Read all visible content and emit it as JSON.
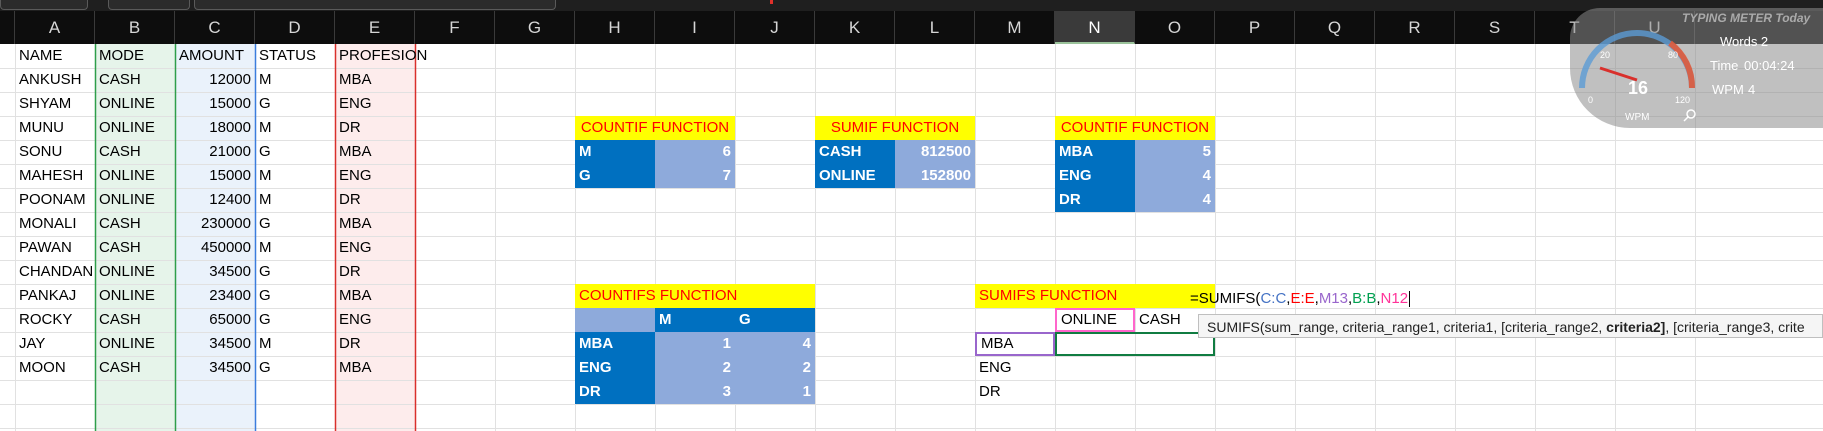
{
  "columns": [
    "A",
    "B",
    "C",
    "D",
    "E",
    "F",
    "G",
    "H",
    "I",
    "J",
    "K",
    "L",
    "M",
    "N",
    "O",
    "P",
    "Q",
    "R",
    "S",
    "T",
    "U"
  ],
  "selected_column": "N",
  "headers": {
    "name": "NAME",
    "mode": "MODE",
    "amount": "AMOUNT",
    "status": "STATUS",
    "profesion": "PROFESION"
  },
  "rows": [
    {
      "name": "ANKUSH",
      "mode": "CASH",
      "amount": "12000",
      "status": "M",
      "profesion": "MBA"
    },
    {
      "name": "SHYAM",
      "mode": "ONLINE",
      "amount": "15000",
      "status": "G",
      "profesion": "ENG"
    },
    {
      "name": "MUNU",
      "mode": "ONLINE",
      "amount": "18000",
      "status": "M",
      "profesion": "DR"
    },
    {
      "name": "SONU",
      "mode": "CASH",
      "amount": "21000",
      "status": "G",
      "profesion": "MBA"
    },
    {
      "name": "MAHESH",
      "mode": "ONLINE",
      "amount": "15000",
      "status": "M",
      "profesion": "ENG"
    },
    {
      "name": "POONAM",
      "mode": "ONLINE",
      "amount": "12400",
      "status": "M",
      "profesion": "DR"
    },
    {
      "name": "MONALI",
      "mode": "CASH",
      "amount": "230000",
      "status": "G",
      "profesion": "MBA"
    },
    {
      "name": "PAWAN",
      "mode": "CASH",
      "amount": "450000",
      "status": "M",
      "profesion": "ENG"
    },
    {
      "name": "CHANDAN",
      "mode": "ONLINE",
      "amount": "34500",
      "status": "G",
      "profesion": "DR"
    },
    {
      "name": "PANKAJ",
      "mode": "ONLINE",
      "amount": "23400",
      "status": "G",
      "profesion": "MBA"
    },
    {
      "name": "ROCKY",
      "mode": "CASH",
      "amount": "65000",
      "status": "G",
      "profesion": "ENG"
    },
    {
      "name": "JAY",
      "mode": "ONLINE",
      "amount": "34500",
      "status": "M",
      "profesion": "DR"
    },
    {
      "name": "MOON",
      "mode": "CASH",
      "amount": "34500",
      "status": "G",
      "profesion": "MBA"
    }
  ],
  "countif1": {
    "title": "COUNTIF FUNCTION",
    "rows": [
      {
        "label": "M",
        "value": "6"
      },
      {
        "label": "G",
        "value": "7"
      }
    ]
  },
  "sumif": {
    "title": "SUMIF FUNCTION",
    "rows": [
      {
        "label": "CASH",
        "value": "812500"
      },
      {
        "label": "ONLINE",
        "value": "152800"
      }
    ]
  },
  "countif2": {
    "title": "COUNTIF FUNCTION",
    "rows": [
      {
        "label": "MBA",
        "value": "5"
      },
      {
        "label": "ENG",
        "value": "4"
      },
      {
        "label": "DR",
        "value": "4"
      }
    ]
  },
  "countifs": {
    "title": "COUNTIFS  FUNCTION",
    "col1": "M",
    "col2": "G",
    "rows": [
      {
        "label": "MBA",
        "m": "1",
        "g": "4"
      },
      {
        "label": "ENG",
        "m": "2",
        "g": "2"
      },
      {
        "label": "DR",
        "m": "3",
        "g": "1"
      }
    ]
  },
  "sumifs": {
    "title": "SUMIFS FUNCTION",
    "col1": "ONLINE",
    "col2": "CASH",
    "rows": [
      "MBA",
      "ENG",
      "DR"
    ],
    "formula": {
      "prefix": "=SUMIFS(",
      "p1": "C:C",
      "p2": "E:E",
      "p3": "M13",
      "p4": "B:B",
      "p5": "N12",
      "comma": ","
    }
  },
  "tooltip": {
    "fn": "SUMIFS(sum_range, criteria_range1, criteria1, [criteria_range2, ",
    "bold": "criteria2]",
    "rest": ", [criteria_range3, crite"
  },
  "meter": {
    "title": "TYPING METER Today",
    "words": "Words 2",
    "time_label": "Time",
    "time": "00:04:24",
    "wpm_label": "WPM",
    "wpm": "4",
    "gauge_value": "16",
    "gauge_unit": "WPM",
    "ticks": [
      "0",
      "20",
      "80",
      "120"
    ]
  },
  "colors": {
    "yellow": "#ffff00",
    "dark_blue": "#0070c0",
    "light_blue": "#8eaadb",
    "red_text": "#ff0000"
  }
}
